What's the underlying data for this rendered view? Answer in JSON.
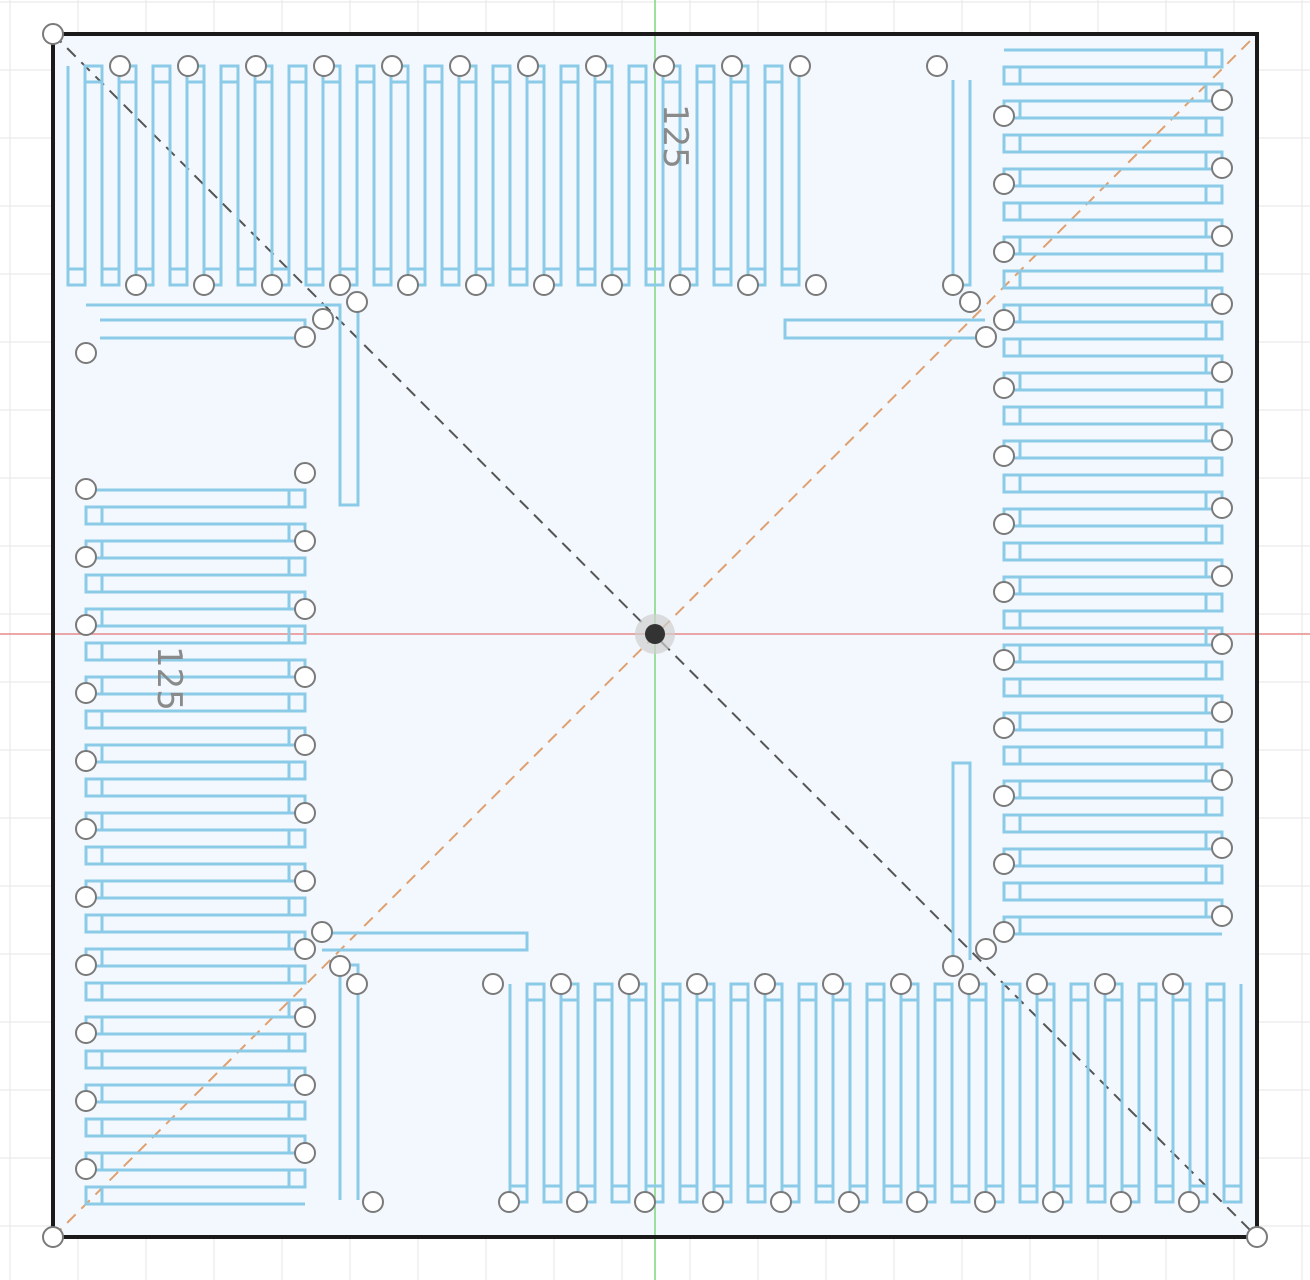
{
  "app": {
    "view": "sketch-canvas"
  },
  "colors": {
    "background": "#ffffff",
    "grid": "#e6e6e6",
    "sheet_fill": "#f2f8fd",
    "outline": "#1a1a1a",
    "trace": "#8ccbe8",
    "axis_x": "#e88a8a",
    "axis_y": "#7fd67f",
    "diag_construction_black": "#555555",
    "diag_construction_orange": "#e0a070",
    "point_stroke": "#7a7a7a",
    "origin": "#333333"
  },
  "dimensions": {
    "top_label": "125",
    "left_label": "125"
  },
  "icons": {
    "origin": "origin-point-icon",
    "sketch_point": "sketch-point-icon"
  }
}
